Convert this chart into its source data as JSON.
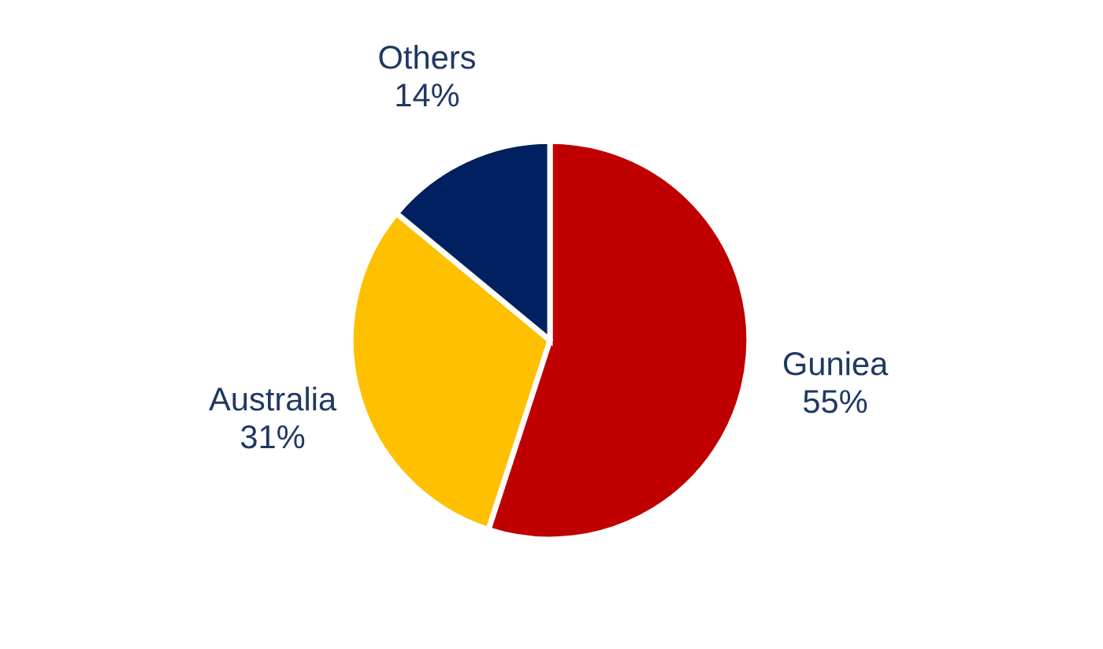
{
  "chart_data": {
    "type": "pie",
    "categories": [
      "Guniea",
      "Australia",
      "Others"
    ],
    "values": [
      55,
      31,
      14
    ],
    "colors": [
      "#c00000",
      "#ffc000",
      "#002060"
    ],
    "value_labels": [
      "55%",
      "31%",
      "14%"
    ]
  }
}
